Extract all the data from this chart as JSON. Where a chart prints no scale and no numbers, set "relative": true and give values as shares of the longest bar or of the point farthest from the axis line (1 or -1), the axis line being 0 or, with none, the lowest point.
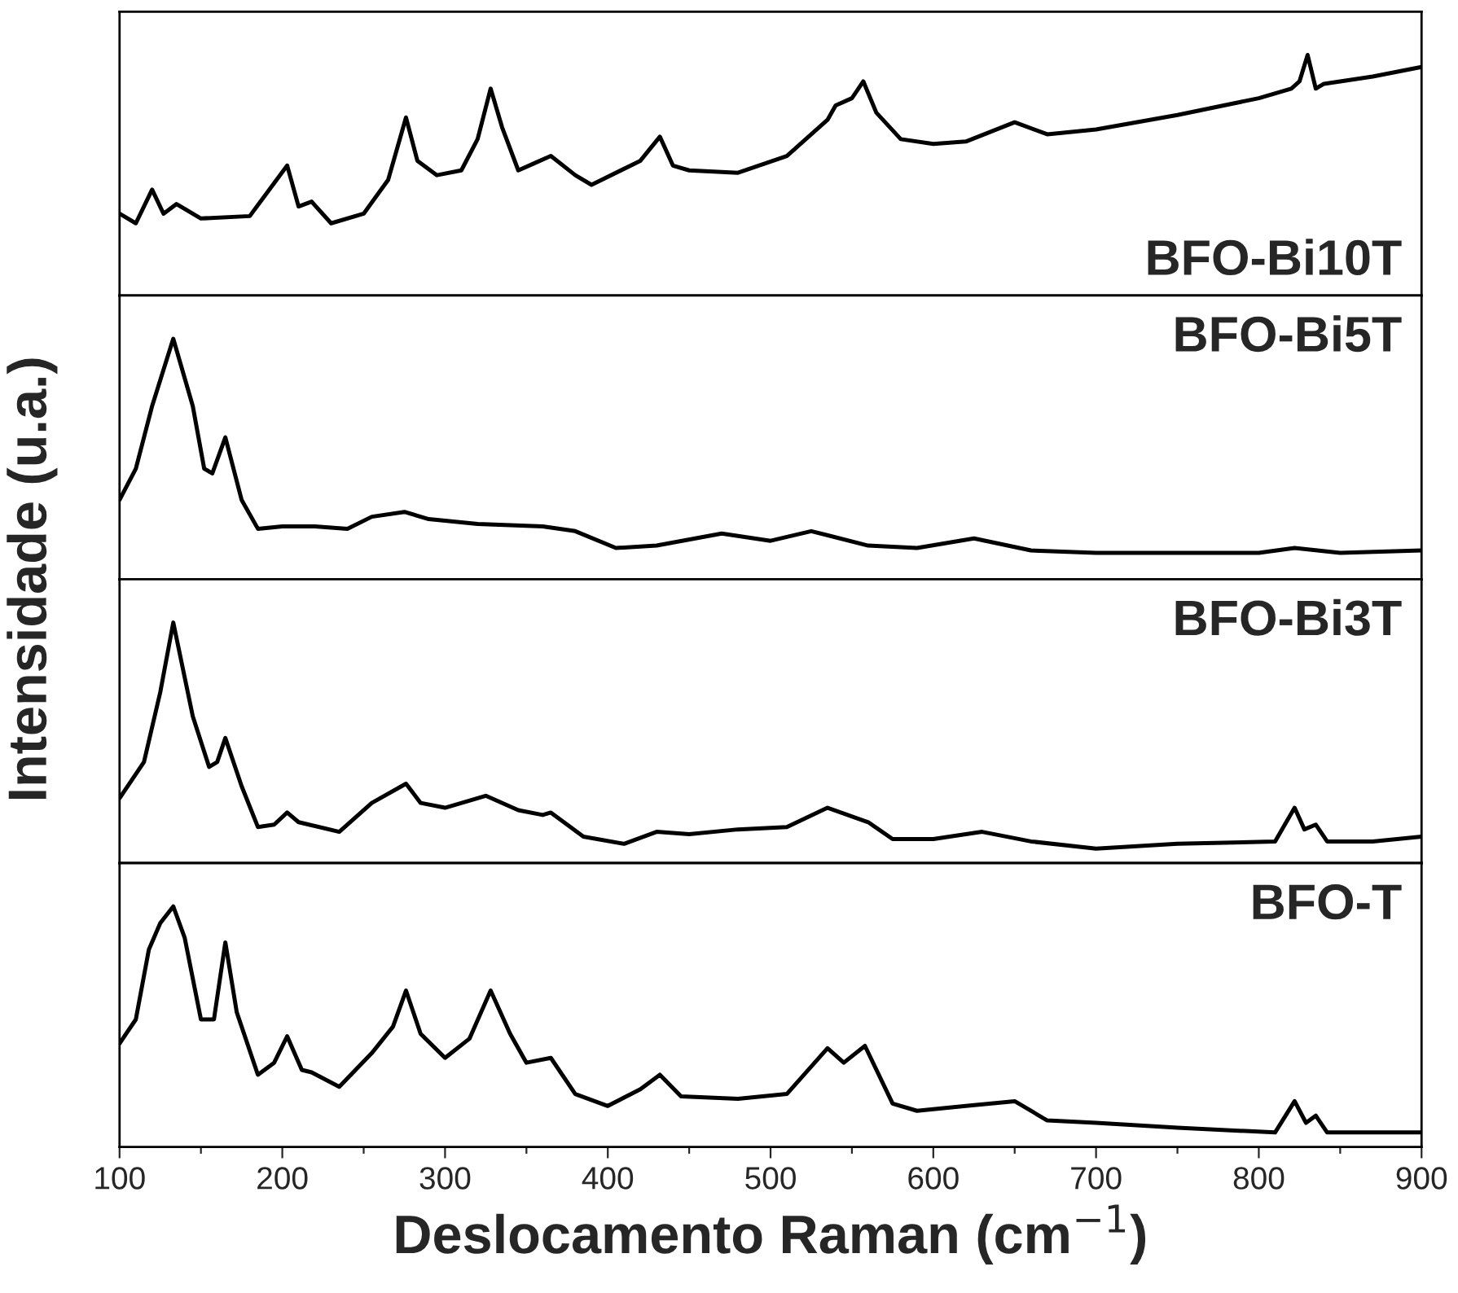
{
  "chart_data": [
    {
      "type": "line",
      "relative": true,
      "xlim": [
        100,
        900
      ],
      "tick_labels": false,
      "ylabel": "Intensidade (u.a.)",
      "series": [
        {
          "name": "BFO-Bi10T",
          "color": "#000000",
          "x": [
            100,
            110,
            120,
            127,
            135,
            150,
            180,
            203,
            210,
            218,
            230,
            250,
            265,
            276,
            283,
            295,
            310,
            320,
            328,
            335,
            345,
            355,
            365,
            380,
            390,
            420,
            432,
            440,
            450,
            480,
            510,
            535,
            540,
            550,
            557,
            565,
            580,
            600,
            620,
            650,
            670,
            700,
            750,
            800,
            820,
            825,
            830,
            835,
            840,
            870,
            900
          ],
          "values": [
            0.34,
            0.3,
            0.44,
            0.34,
            0.38,
            0.32,
            0.33,
            0.54,
            0.37,
            0.39,
            0.3,
            0.34,
            0.48,
            0.74,
            0.56,
            0.5,
            0.52,
            0.65,
            0.86,
            0.7,
            0.52,
            0.55,
            0.58,
            0.5,
            0.46,
            0.56,
            0.66,
            0.54,
            0.52,
            0.51,
            0.58,
            0.73,
            0.79,
            0.82,
            0.89,
            0.76,
            0.65,
            0.63,
            0.64,
            0.72,
            0.67,
            0.69,
            0.75,
            0.82,
            0.86,
            0.89,
            1.0,
            0.86,
            0.88,
            0.91,
            0.95
          ]
        }
      ]
    },
    {
      "type": "line",
      "relative": true,
      "xlim": [
        100,
        900
      ],
      "tick_labels": false,
      "series": [
        {
          "name": "BFO-Bi5T",
          "color": "#000000",
          "x": [
            100,
            110,
            120,
            133,
            145,
            152,
            157,
            165,
            175,
            185,
            200,
            220,
            240,
            255,
            275,
            290,
            320,
            360,
            380,
            405,
            430,
            470,
            500,
            525,
            560,
            590,
            625,
            660,
            700,
            800,
            822,
            850,
            900
          ],
          "values": [
            0.33,
            0.46,
            0.72,
            1.0,
            0.72,
            0.46,
            0.44,
            0.59,
            0.33,
            0.21,
            0.22,
            0.22,
            0.21,
            0.26,
            0.28,
            0.25,
            0.23,
            0.22,
            0.2,
            0.13,
            0.14,
            0.19,
            0.16,
            0.2,
            0.14,
            0.13,
            0.17,
            0.12,
            0.11,
            0.11,
            0.13,
            0.11,
            0.12
          ]
        }
      ]
    },
    {
      "type": "line",
      "relative": true,
      "xlim": [
        100,
        900
      ],
      "tick_labels": false,
      "series": [
        {
          "name": "BFO-Bi3T",
          "color": "#000000",
          "x": [
            100,
            115,
            125,
            133,
            145,
            155,
            160,
            165,
            175,
            185,
            195,
            203,
            210,
            235,
            255,
            276,
            285,
            300,
            325,
            345,
            360,
            365,
            385,
            410,
            430,
            450,
            480,
            510,
            535,
            560,
            575,
            600,
            630,
            660,
            700,
            750,
            810,
            822,
            828,
            835,
            842,
            870,
            900
          ],
          "values": [
            0.27,
            0.42,
            0.71,
            1.0,
            0.61,
            0.4,
            0.42,
            0.52,
            0.32,
            0.15,
            0.16,
            0.21,
            0.17,
            0.13,
            0.25,
            0.33,
            0.25,
            0.23,
            0.28,
            0.22,
            0.2,
            0.21,
            0.11,
            0.08,
            0.13,
            0.12,
            0.14,
            0.15,
            0.23,
            0.17,
            0.1,
            0.1,
            0.13,
            0.09,
            0.06,
            0.08,
            0.09,
            0.23,
            0.14,
            0.16,
            0.09,
            0.09,
            0.11
          ]
        }
      ]
    },
    {
      "type": "line",
      "relative": true,
      "xlim": [
        100,
        900
      ],
      "tick_labels": "x",
      "xlabel": "Deslocamento Raman (cm$^{−1}$)",
      "xticks": [
        100,
        {
          "value": 150,
          "label": null
        },
        200,
        {
          "value": 250,
          "label": null
        },
        300,
        {
          "value": 350,
          "label": null
        },
        400,
        {
          "value": 450,
          "label": null
        },
        500,
        {
          "value": 550,
          "label": null
        },
        600,
        {
          "value": 650,
          "label": null
        },
        700,
        {
          "value": 750,
          "label": null
        },
        800,
        {
          "value": 850,
          "label": null
        },
        900
      ],
      "series": [
        {
          "name": "BFO-T",
          "color": "#000000",
          "x": [
            100,
            110,
            118,
            125,
            133,
            140,
            150,
            158,
            165,
            172,
            185,
            195,
            203,
            212,
            218,
            235,
            255,
            268,
            276,
            285,
            300,
            315,
            328,
            340,
            350,
            365,
            380,
            400,
            420,
            432,
            445,
            480,
            510,
            535,
            545,
            558,
            575,
            590,
            620,
            650,
            670,
            700,
            750,
            810,
            822,
            829,
            835,
            842,
            900
          ],
          "values": [
            0.43,
            0.53,
            0.82,
            0.93,
            1.0,
            0.87,
            0.53,
            0.53,
            0.85,
            0.56,
            0.3,
            0.35,
            0.46,
            0.32,
            0.31,
            0.25,
            0.39,
            0.5,
            0.65,
            0.47,
            0.37,
            0.45,
            0.65,
            0.47,
            0.35,
            0.37,
            0.22,
            0.17,
            0.24,
            0.3,
            0.21,
            0.2,
            0.22,
            0.41,
            0.35,
            0.42,
            0.18,
            0.15,
            0.17,
            0.19,
            0.11,
            0.1,
            0.08,
            0.06,
            0.19,
            0.1,
            0.13,
            0.06,
            0.06
          ]
        }
      ]
    }
  ]
}
